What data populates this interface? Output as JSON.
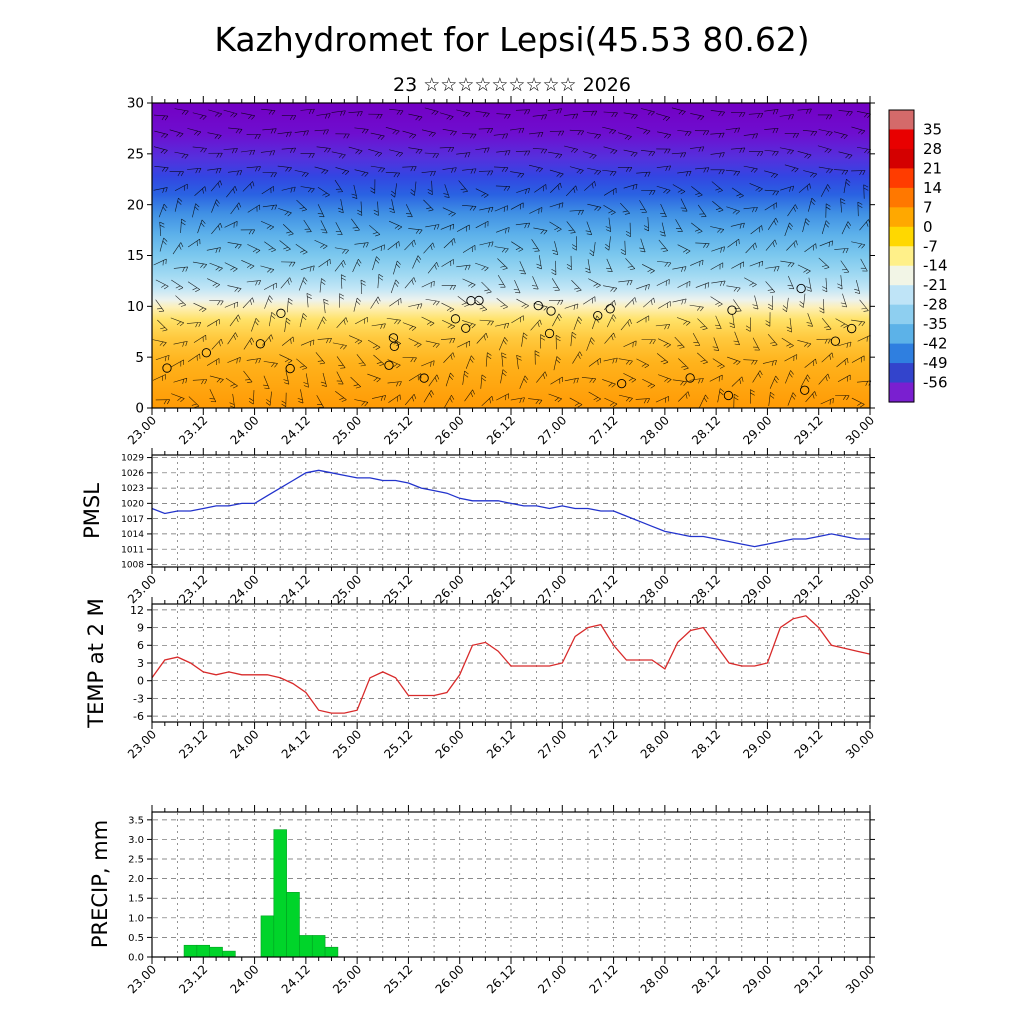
{
  "title": "Kazhydromet for Lepsi(45.53 80.62)",
  "subtitle": "23 ☆☆☆☆☆☆☆☆☆ 2026",
  "x_axis": {
    "start": 23.0,
    "end": 30.0,
    "label_step_days": 0.5,
    "minor_step_days": 0.125,
    "labels": [
      "23.00",
      "23.12",
      "24.00",
      "24.12",
      "25.00",
      "25.12",
      "26.00",
      "26.12",
      "27.00",
      "27.12",
      "28.00",
      "28.12",
      "29.00",
      "29.12",
      "30.00"
    ]
  },
  "chart_data": [
    {
      "name": "cross_section",
      "type": "heatmap",
      "description": "temperature vertical cross-section with wind barbs and calm circles",
      "ylim": [
        0,
        30
      ],
      "yticks": [
        0,
        5,
        10,
        15,
        20,
        25,
        30
      ],
      "gradient_stops": [
        [
          "0",
          "#7400c4"
        ],
        [
          "0.10",
          "#6e0ecf"
        ],
        [
          "0.18",
          "#5530dd"
        ],
        [
          "0.24",
          "#3345e2"
        ],
        [
          "0.30",
          "#2a62e2"
        ],
        [
          "0.36",
          "#3f8fe4"
        ],
        [
          "0.43",
          "#5cb0ea"
        ],
        [
          "0.50",
          "#7cc8ee"
        ],
        [
          "0.56",
          "#9ed8f2"
        ],
        [
          "0.61",
          "#c3e6f6"
        ],
        [
          "0.645",
          "#ecf2ee"
        ],
        [
          "0.67",
          "#fdf0b8"
        ],
        [
          "0.71",
          "#ffe268"
        ],
        [
          "0.77",
          "#ffc93e"
        ],
        [
          "0.85",
          "#ffb31c"
        ],
        [
          "1",
          "#ff9a05"
        ]
      ],
      "colorbar": {
        "labels": [
          "35",
          "28",
          "21",
          "14",
          "7",
          "0",
          "-7",
          "-14",
          "-21",
          "-28",
          "-35",
          "-42",
          "-49",
          "-56"
        ],
        "colors": [
          "#d46a6a",
          "#e80000",
          "#d40000",
          "#ff3c00",
          "#ff7800",
          "#ffa800",
          "#ffd800",
          "#fff089",
          "#f2f5e6",
          "#bfe4f7",
          "#8ecff0",
          "#5cb2e8",
          "#2f7fe0",
          "#3344cc",
          "#7a1fd0"
        ]
      }
    },
    {
      "name": "pmsl",
      "type": "line",
      "ylabel": "PMSL",
      "color": "#2233cc",
      "ylim": [
        1007.5,
        1029.5
      ],
      "yticks": [
        1029,
        1026,
        1023,
        1020,
        1017,
        1014,
        1011,
        1008
      ],
      "x_start": 23.0,
      "x_step_days": 0.125,
      "values": [
        1019,
        1018,
        1018.5,
        1018.5,
        1019,
        1019.5,
        1019.5,
        1020,
        1020,
        1021.5,
        1023,
        1024.5,
        1026,
        1026.5,
        1026,
        1025.5,
        1025,
        1025,
        1024.5,
        1024.5,
        1024,
        1023,
        1022.5,
        1022,
        1021,
        1020.5,
        1020.5,
        1020.5,
        1020,
        1019.5,
        1019.5,
        1019,
        1019.5,
        1019,
        1019,
        1018.5,
        1018.5,
        1017.5,
        1016.5,
        1015.5,
        1014.5,
        1014,
        1013.5,
        1013.5,
        1013,
        1012.5,
        1012,
        1011.5,
        1012,
        1012.5,
        1013,
        1013,
        1013.5,
        1014,
        1013.5,
        1013,
        1013
      ]
    },
    {
      "name": "temp2m",
      "type": "line",
      "ylabel": "TEMP at 2 M",
      "color": "#d82a2a",
      "ylim": [
        -7,
        13
      ],
      "yticks": [
        12,
        9,
        6,
        3,
        0,
        -3,
        -6
      ],
      "x_start": 23.0,
      "x_step_days": 0.125,
      "values": [
        0.5,
        3.5,
        4,
        3,
        1.5,
        1,
        1.5,
        1,
        1,
        1,
        0.5,
        -0.5,
        -2,
        -5,
        -5.5,
        -5.5,
        -5,
        0.5,
        1.5,
        0.5,
        -2.5,
        -2.5,
        -2.5,
        -2,
        1,
        6,
        6.5,
        5,
        2.5,
        2.5,
        2.5,
        2.5,
        3,
        7.5,
        9,
        9.5,
        6,
        3.5,
        3.5,
        3.5,
        2,
        6.5,
        8.5,
        9,
        6,
        3,
        2.5,
        2.5,
        3,
        9,
        10.5,
        11,
        9,
        6,
        5.5,
        5,
        4.5
      ]
    },
    {
      "name": "precip",
      "type": "bar",
      "ylabel": "PRECIP, mm",
      "color": "#00d42a",
      "ylim": [
        0,
        3.7
      ],
      "yticks": [
        "3.5",
        "3.0",
        "2.5",
        "2.0",
        "1.5",
        "1.0",
        "0.5",
        "0.0"
      ],
      "x_start": 23.0,
      "x_step_days": 0.125,
      "values": [
        0,
        0,
        0,
        0.3,
        0.3,
        0.25,
        0.15,
        0,
        0,
        1.05,
        3.25,
        1.65,
        0.55,
        0.55,
        0.25,
        0,
        0,
        0,
        0,
        0,
        0,
        0,
        0,
        0,
        0,
        0,
        0,
        0,
        0,
        0,
        0,
        0,
        0,
        0,
        0,
        0,
        0,
        0,
        0,
        0,
        0,
        0,
        0,
        0,
        0,
        0,
        0,
        0,
        0,
        0,
        0,
        0,
        0,
        0,
        0,
        0,
        0
      ]
    }
  ]
}
